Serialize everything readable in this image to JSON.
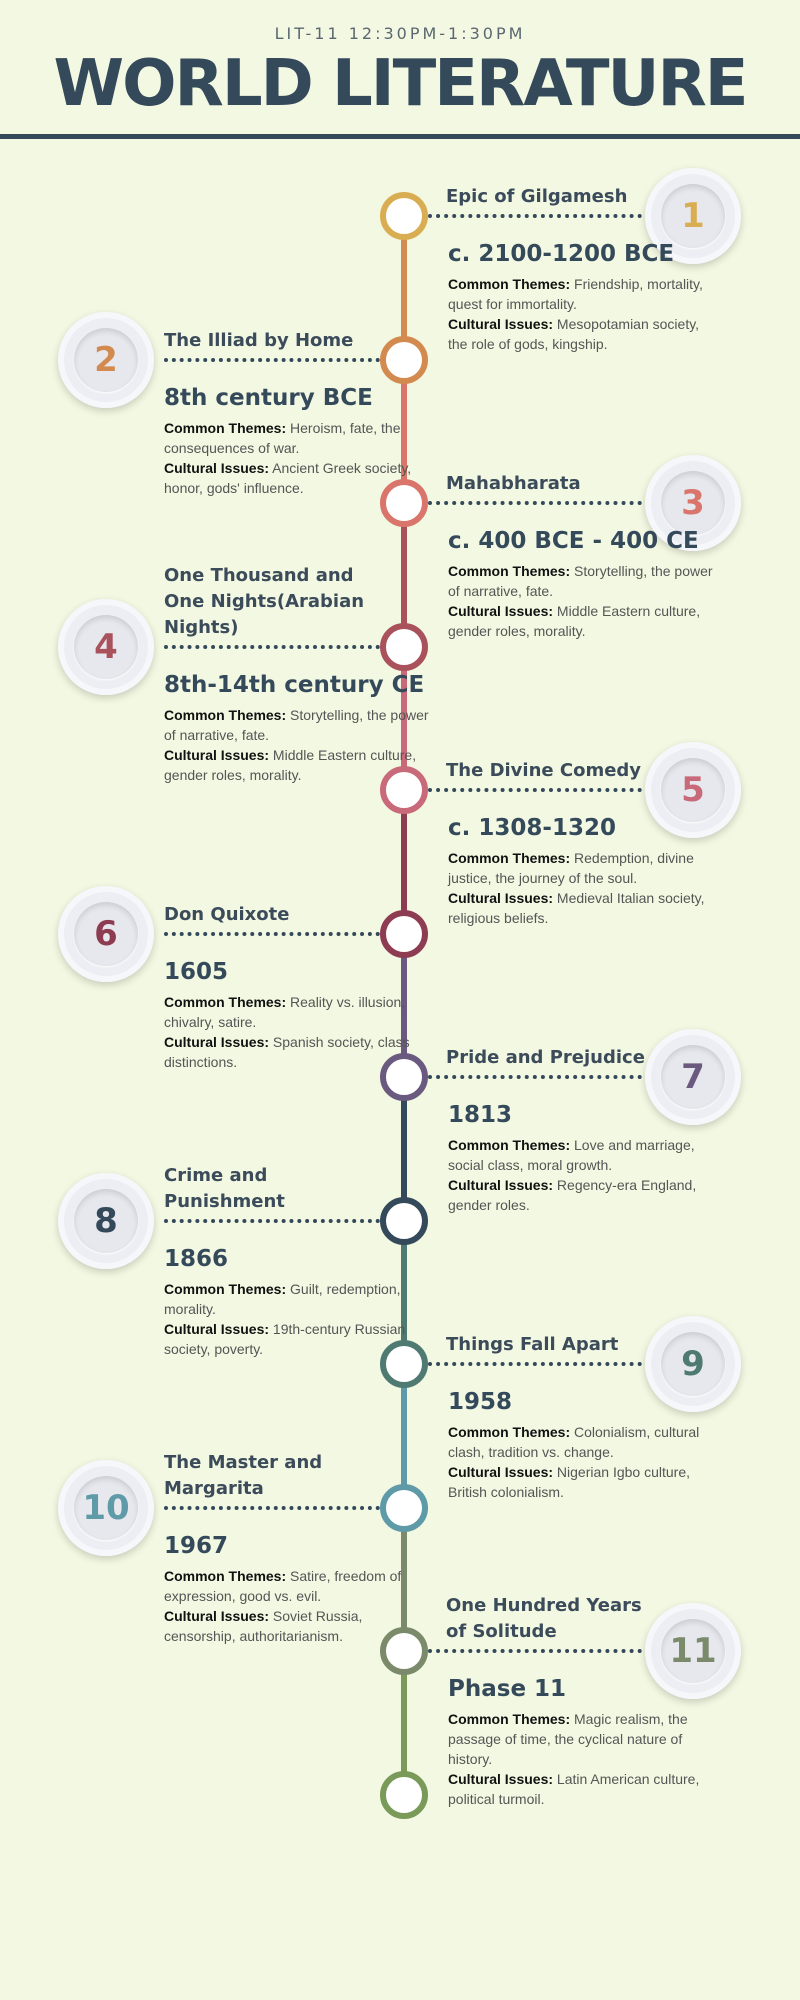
{
  "header": {
    "subtitle": "LIT-11 12:30PM-1:30PM",
    "title": "WORLD LITERATURE"
  },
  "timeline": [
    {
      "number": "1",
      "work": "Epic of Gilgamesh",
      "date": "c. 2100-1200 BCE",
      "themes_label": "Common Themes:",
      "themes": "Friendship, mortality, quest for immortality.",
      "issues_label": "Cultural Issues:",
      "issues": "Mesopotamian society, the role of gods, kingship.",
      "color": "#d9ae52"
    },
    {
      "number": "2",
      "work": "The Illiad by Home",
      "date": "8th century BCE",
      "themes_label": "Common Themes:",
      "themes": "Heroism, fate, the consequences of war.",
      "issues_label": "Cultural Issues:",
      "issues": "Ancient Greek society, honor, gods' influence.",
      "color": "#d38a4e"
    },
    {
      "number": "3",
      "work": "Mahabharata",
      "date": "c. 400 BCE - 400 CE",
      "themes_label": "Common Themes:",
      "themes": "Storytelling, the power of narrative, fate.",
      "issues_label": "Cultural Issues:",
      "issues": "Middle Eastern culture, gender roles, morality.",
      "color": "#d9756a"
    },
    {
      "number": "4",
      "work": "One Thousand and One Nights(Arabian Nights)",
      "date": "8th-14th century CE",
      "themes_label": "Common Themes:",
      "themes": "Storytelling, the power of narrative, fate.",
      "issues_label": "Cultural Issues:",
      "issues": "Middle Eastern culture, gender roles, morality.",
      "color": "#a9525c"
    },
    {
      "number": "5",
      "work": "The Divine Comedy",
      "date": "c. 1308-1320",
      "themes_label": "Common Themes:",
      "themes": "Redemption, divine justice, the journey of the soul.",
      "issues_label": "Cultural Issues:",
      "issues": "Medieval Italian society, religious beliefs.",
      "color": "#c86a7a"
    },
    {
      "number": "6",
      "work": "Don Quixote",
      "date": "1605",
      "themes_label": "Common Themes:",
      "themes": "Reality vs. illusion, chivalry, satire.",
      "issues_label": "Cultural Issues:",
      "issues": "Spanish society, class distinctions.",
      "color": "#8e3c52"
    },
    {
      "number": "7",
      "work": "Pride and Prejudice",
      "date": "1813",
      "themes_label": "Common Themes:",
      "themes": "Love and marriage, social class, moral growth.",
      "issues_label": "Cultural Issues:",
      "issues": "Regency-era England, gender roles.",
      "color": "#6a5a80"
    },
    {
      "number": "8",
      "work": "Crime and Punishment",
      "date": "1866",
      "themes_label": "Common Themes:",
      "themes": "Guilt, redemption, morality.",
      "issues_label": "Cultural Issues:",
      "issues": "19th-century Russian society, poverty.",
      "color": "#34495a"
    },
    {
      "number": "9",
      "work": "Things Fall Apart",
      "date": "1958",
      "themes_label": "Common Themes:",
      "themes": "Colonialism, cultural clash, tradition vs. change.",
      "issues_label": "Cultural Issues:",
      "issues": "Nigerian Igbo culture, British colonialism.",
      "color": "#4f7a72"
    },
    {
      "number": "10",
      "work": "The Master and Margarita",
      "date": "1967",
      "themes_label": "Common Themes:",
      "themes": "Satire, freedom of expression, good vs. evil.",
      "issues_label": "Cultural Issues:",
      "issues": "Soviet Russia, censorship, authoritarianism.",
      "color": "#5f9aa8"
    },
    {
      "number": "11",
      "work": "One Hundred Years of Solitude",
      "date": "Phase 11",
      "themes_label": "Common Themes:",
      "themes": "Magic realism, the passage of time, the cyclical nature of history.",
      "issues_label": "Cultural Issues:",
      "issues": "Latin American culture, political turmoil.",
      "color": "#7a8a6a"
    }
  ],
  "end_node_color": "#7a9a5a"
}
